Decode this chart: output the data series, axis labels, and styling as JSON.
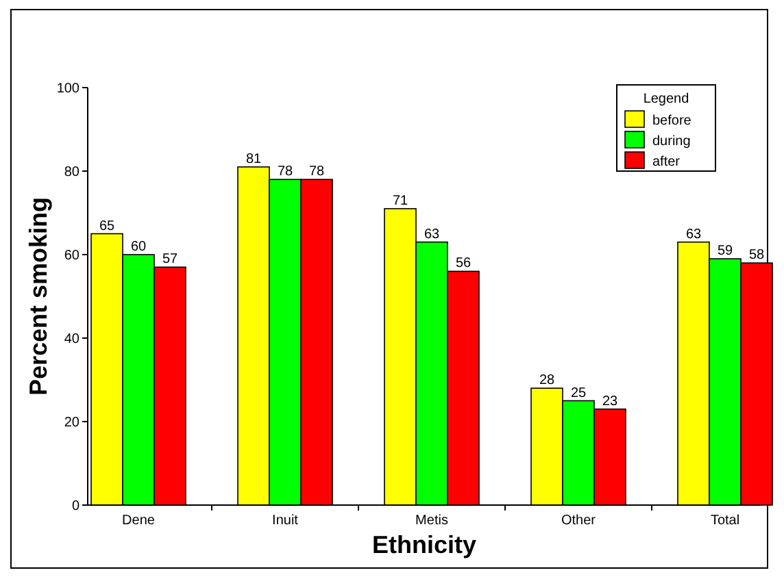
{
  "chart_data": {
    "type": "bar",
    "xlabel": "Ethnicity",
    "ylabel": "Percent smoking",
    "legend_title": "Legend",
    "categories": [
      "Dene",
      "Inuit",
      "Metis",
      "Other",
      "Total"
    ],
    "series": [
      {
        "name": "before",
        "color": "#ffff00",
        "values": [
          65,
          81,
          71,
          28,
          63
        ]
      },
      {
        "name": "during",
        "color": "#00ff00",
        "values": [
          60,
          78,
          63,
          25,
          59
        ]
      },
      {
        "name": "after",
        "color": "#ff0000",
        "values": [
          57,
          78,
          56,
          23,
          58
        ]
      }
    ],
    "ylim": [
      0,
      100
    ],
    "yticks": [
      0,
      20,
      40,
      60,
      80,
      100
    ],
    "data_labels": true,
    "legend": "top right",
    "grid": false
  }
}
